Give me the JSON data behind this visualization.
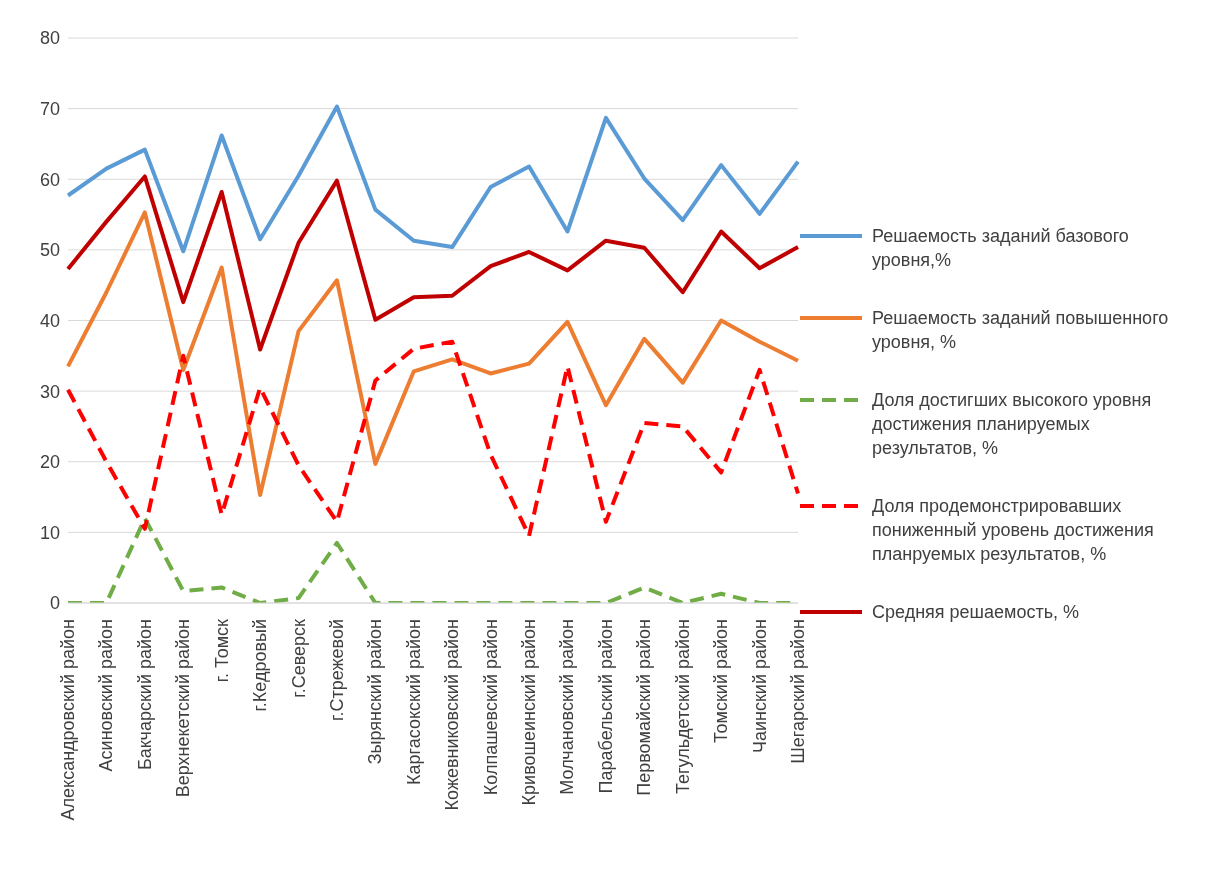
{
  "chart_data": {
    "type": "line",
    "categories": [
      "Александровский район",
      "Асиновский район",
      "Бакчарский район",
      "Верхнекетский район",
      "г. Томск",
      "г.Кедровый",
      "г.Северск",
      "г.Стрежевой",
      "Зырянский район",
      "Каргасокский район",
      "Кожевниковский район",
      "Колпашевский район",
      "Кривошеинский район",
      "Молчановский район",
      "Парабельский район",
      "Первомайский район",
      "Тегульдетский район",
      "Томский район",
      "Чаинский район",
      "Шегарский район"
    ],
    "series": [
      {
        "name": "Решаемость заданий базового уровня,%",
        "color": "#5b9bd5",
        "line_style": "solid",
        "values": [
          57.7,
          61.5,
          64.2,
          49.8,
          66.2,
          51.5,
          60.5,
          70.3,
          55.7,
          51.3,
          50.4,
          58.9,
          61.8,
          52.6,
          68.7,
          60.1,
          54.2,
          62.0,
          55.1,
          62.5
        ]
      },
      {
        "name": "Решаемость заданий повышенного уровня, %",
        "color": "#ed7d31",
        "line_style": "solid",
        "values": [
          33.5,
          44,
          55.3,
          33,
          47.5,
          15.3,
          38.5,
          45.7,
          19.7,
          32.8,
          34.5,
          32.5,
          33.9,
          39.8,
          28,
          37.4,
          31.2,
          40,
          37,
          34.3
        ]
      },
      {
        "name": "Доля достигших высокого уровня достижения планируемых результатов, %",
        "color": "#70ad47",
        "line_style": "dashed",
        "values": [
          0,
          0,
          12,
          1.7,
          2.2,
          0,
          0.7,
          8.5,
          0,
          0,
          0,
          0,
          0,
          0,
          0,
          2.2,
          0,
          1.3,
          0,
          0
        ]
      },
      {
        "name": "Доля продемонстрировавших пониженный уровень достижения планруемых результатов, %",
        "color": "#ff0000",
        "line_style": "dashed",
        "values": [
          30.2,
          20,
          10.5,
          35,
          12.5,
          30.5,
          19.5,
          11.5,
          31.5,
          36,
          37,
          21,
          9.5,
          33.5,
          11.5,
          25.5,
          25,
          18.5,
          33,
          15.5
        ]
      },
      {
        "name": "Средняя решаемость, %",
        "color": "#c00000",
        "line_style": "solid",
        "values": [
          47.3,
          54,
          60.4,
          42.6,
          58.2,
          35.9,
          51,
          59.8,
          40.1,
          43.3,
          43.5,
          47.7,
          49.7,
          47.1,
          51.3,
          50.3,
          44,
          52.6,
          47.4,
          50.4
        ]
      }
    ],
    "ylim": [
      0,
      80
    ],
    "yticks": [
      0,
      10,
      20,
      30,
      40,
      50,
      60,
      70,
      80
    ],
    "grid": "y",
    "legend": "right",
    "marker": "none"
  }
}
